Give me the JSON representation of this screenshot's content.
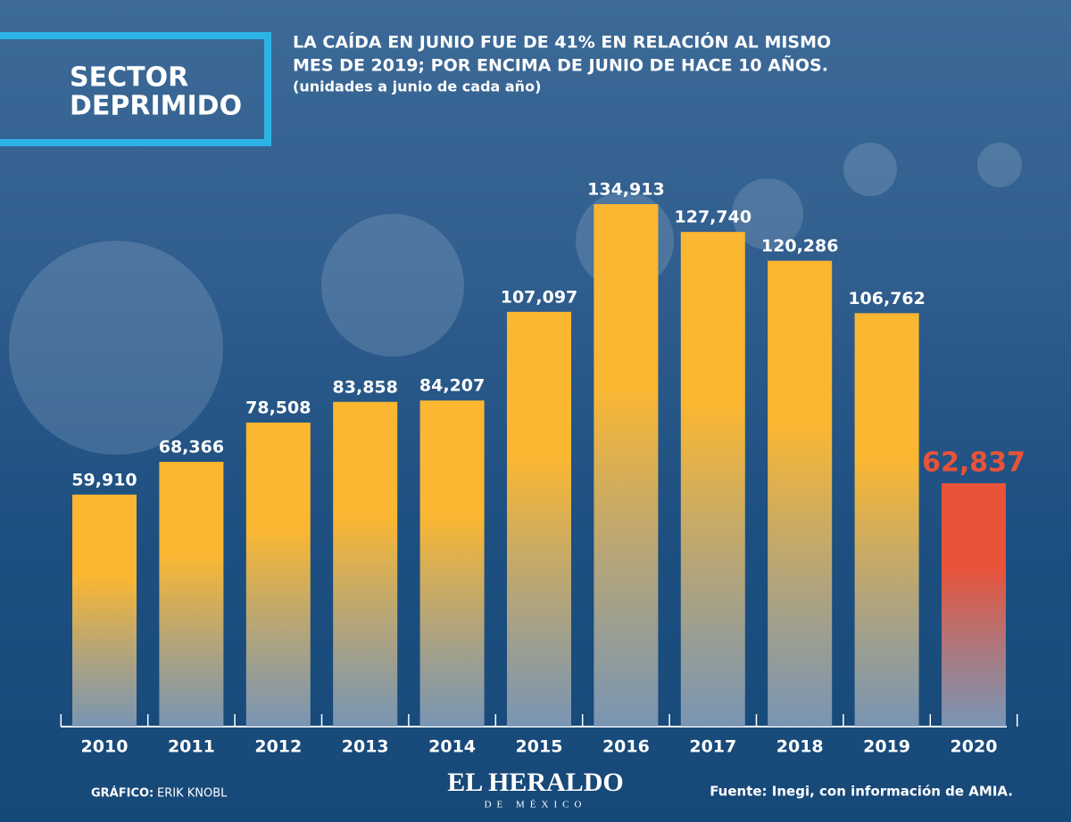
{
  "chart_data": {
    "type": "bar",
    "badge": [
      "SECTOR",
      "DEPRIMIDO"
    ],
    "title": [
      "LA CAÍDA EN JUNIO FUE DE 41% EN RELACIÓN AL MISMO",
      "MES DE 2019; POR ENCIMA DE JUNIO DE HACE 10 AÑOS."
    ],
    "subtitle": "(unidades a junio de cada año)",
    "categories": [
      "2010",
      "2011",
      "2012",
      "2013",
      "2014",
      "2015",
      "2016",
      "2017",
      "2018",
      "2019",
      "2020"
    ],
    "values": [
      59910,
      68366,
      78508,
      83858,
      84207,
      107097,
      134913,
      127740,
      120286,
      106762,
      62837
    ],
    "value_labels": [
      "59,910",
      "68,366",
      "78,508",
      "83,858",
      "84,207",
      "107,097",
      "134,913",
      "127,740",
      "120,286",
      "106,762",
      "62,837"
    ],
    "colors": [
      "#fbb731",
      "#fbb731",
      "#fbb731",
      "#fbb731",
      "#fbb731",
      "#fbb731",
      "#fbb731",
      "#fbb731",
      "#fbb731",
      "#fbb731",
      "#e8533a"
    ],
    "credit_label": "GRÁFICO:",
    "credit_name": "ERIK KNOBL",
    "logo": "EL HERALDO",
    "logo_sub": "DE MÉXICO",
    "source": "Fuente: Inegi, con información de AMIA."
  }
}
